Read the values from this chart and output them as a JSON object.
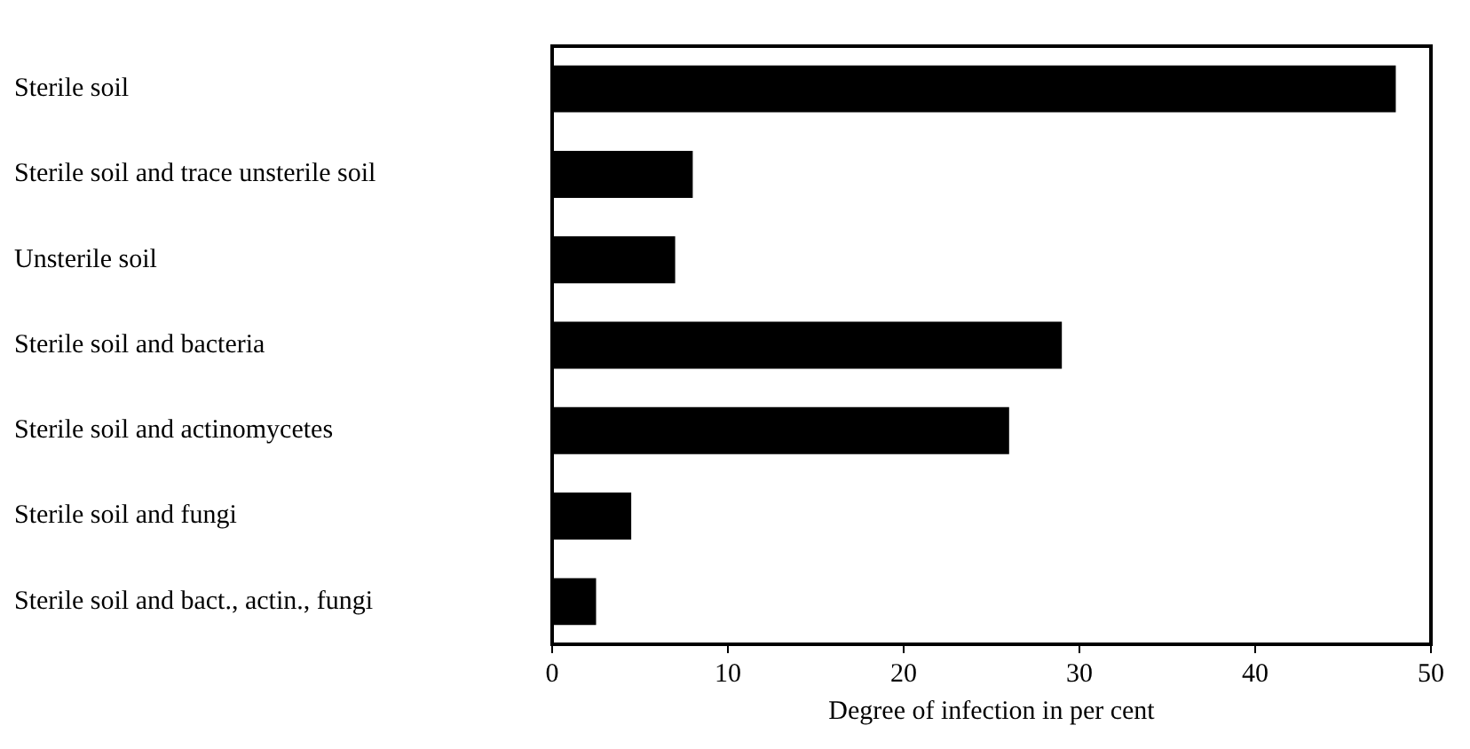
{
  "chart_data": {
    "type": "bar",
    "orientation": "horizontal",
    "xlabel": "Degree of infection in per cent",
    "categories": [
      "Sterile soil",
      "Sterile soil and trace unsterile soil",
      "Unsterile soil",
      "Sterile soil and bacteria",
      "Sterile soil and actinomycetes",
      "Sterile soil and fungi",
      "Sterile soil and bact., actin., fungi"
    ],
    "values": [
      48,
      8,
      7,
      29,
      26,
      4.5,
      2.5
    ],
    "color": "#000000",
    "xlim": [
      0,
      50
    ],
    "xticks": [
      0,
      10,
      20,
      30,
      40,
      50
    ],
    "grid": false,
    "legend": false
  }
}
